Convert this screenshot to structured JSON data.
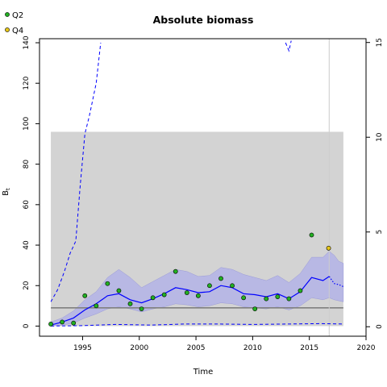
{
  "chart_data": {
    "type": "line",
    "title": "Absolute biomass",
    "xlabel": "Time",
    "ylabel": "B",
    "ylabel_sub": "t",
    "xlim": [
      1991.2,
      2020
    ],
    "ylim": [
      -5,
      142
    ],
    "y2lim": [
      -0.5,
      15.2
    ],
    "x_ticks": [
      1995,
      2000,
      2005,
      2010,
      2015,
      2020
    ],
    "y_ticks": [
      0,
      20,
      40,
      60,
      80,
      100,
      120,
      140
    ],
    "y2_ticks": [
      0,
      5,
      10,
      15
    ],
    "legend": {
      "placement": "top-left",
      "entries": [
        {
          "label": "Q2",
          "color": "#22b022"
        },
        {
          "label": "Q4",
          "color": "#e6c619"
        }
      ]
    },
    "colors": {
      "estimate": "#0000ff",
      "band": "#b3b3e6",
      "box": "#d3d3d3",
      "reference": "#808080",
      "vline": "#cccccc"
    },
    "grey_box": {
      "x0": 1992.2,
      "x1": 2018.0,
      "y0": 0,
      "y1": 96
    },
    "reference_line": {
      "y": 9
    },
    "vertical_line": {
      "x": 2016.75
    },
    "estimate": {
      "x": [
        1992.2,
        1993.2,
        1994.2,
        1995.2,
        1996.2,
        1997.2,
        1998.2,
        1999.2,
        2000.2,
        2001.2,
        2002.2,
        2003.2,
        2004.2,
        2005.2,
        2006.2,
        2007.2,
        2008.2,
        2009.2,
        2010.2,
        2011.2,
        2012.2,
        2013.2,
        2014.2,
        2015.2,
        2016.2,
        2016.75
      ],
      "y": [
        0.5,
        2,
        4,
        8,
        11,
        15,
        16,
        13,
        11.5,
        13.5,
        16,
        19,
        18,
        16.5,
        17,
        20,
        19,
        16,
        15.5,
        14.5,
        16,
        13.5,
        17,
        24,
        22.5,
        24.5
      ],
      "lower": [
        0,
        0.5,
        1.5,
        4,
        6,
        8.5,
        9.5,
        8.5,
        7,
        8.5,
        9.5,
        11,
        10.5,
        9.5,
        10,
        11.5,
        11,
        9.5,
        9,
        8.5,
        9.5,
        8,
        10,
        14,
        13,
        14
      ],
      "upper": [
        2,
        4,
        7.5,
        13,
        17,
        24,
        28,
        24,
        19,
        22,
        25,
        28,
        27,
        24.5,
        25,
        29,
        28,
        25.5,
        24,
        22.5,
        25,
        21.5,
        26,
        34,
        34,
        37
      ]
    },
    "forecast": {
      "x": [
        2016.75,
        2017.2,
        2017.6,
        2018.0
      ],
      "y": [
        24.5,
        21,
        20.5,
        19.5
      ],
      "lower": [
        14,
        13,
        12.5,
        12
      ],
      "upper": [
        37,
        35,
        32,
        31
      ]
    },
    "upper_dashed": {
      "x": [
        1992.2,
        1992.8,
        1993.4,
        1993.9,
        1994.4,
        1994.8,
        1995.2,
        1995.6,
        1996.2,
        1996.6
      ],
      "y": [
        12,
        18,
        27,
        36,
        42,
        70,
        95,
        104,
        120,
        140
      ]
    },
    "upper_dashed_tail": {
      "x": [
        2012.9,
        2013.2,
        2013.4
      ],
      "y": [
        140,
        136,
        141
      ]
    },
    "lower_dashed": {
      "x": [
        1992.2,
        1995,
        1998,
        2001,
        2004,
        2007,
        2010,
        2013,
        2016,
        2018
      ],
      "y": [
        0,
        0.2,
        0.8,
        0.5,
        1,
        1,
        0.8,
        1,
        1.2,
        1
      ]
    },
    "observations_q2": {
      "x": [
        1992.2,
        1993.2,
        1994.2,
        1995.2,
        1996.2,
        1997.2,
        1998.2,
        1999.2,
        2000.2,
        2001.2,
        2002.2,
        2003.2,
        2004.2,
        2005.2,
        2006.2,
        2007.2,
        2008.2,
        2009.2,
        2010.2,
        2011.2,
        2012.2,
        2013.2,
        2014.2,
        2015.2
      ],
      "y": [
        1,
        2,
        1.5,
        15,
        10,
        21,
        17.5,
        11,
        8.5,
        14,
        15.5,
        27,
        16.5,
        15,
        20,
        23.5,
        20,
        14,
        8.5,
        13.5,
        14.5,
        13.5,
        17.5,
        45
      ]
    },
    "observations_q4": {
      "x": [
        2016.7
      ],
      "y": [
        38.5
      ]
    }
  }
}
